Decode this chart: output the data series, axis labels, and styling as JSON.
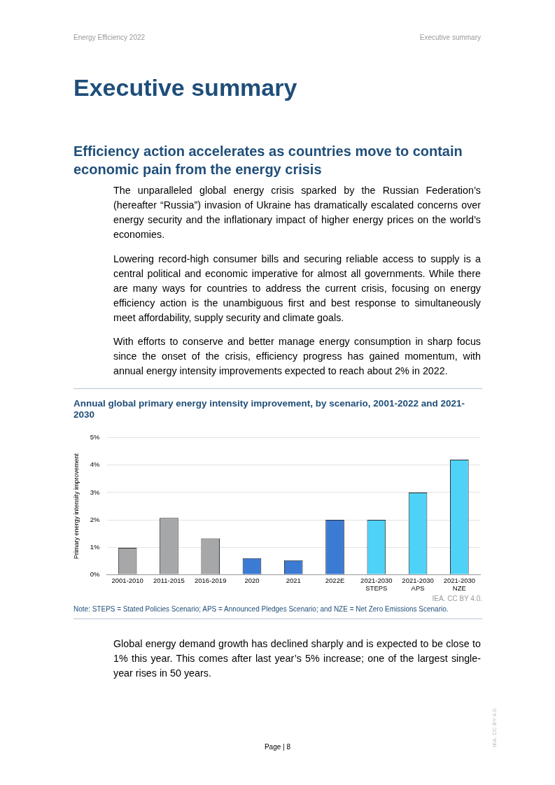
{
  "chart_data": {
    "type": "bar",
    "title": "Annual global primary energy intensity improvement, by scenario, 2001-2022 and 2021-2030",
    "ylabel": "Primary energy intensity improvement",
    "categories": [
      "2001-2010",
      "2011-2015",
      "2016-2019",
      "2020",
      "2021",
      "2022E",
      "2021-2030\nSTEPS",
      "2021-2030\nAPS",
      "2021-2030\nNZE"
    ],
    "values": [
      0.98,
      2.07,
      1.32,
      0.6,
      0.52,
      2.0,
      2.0,
      3.0,
      4.2
    ],
    "colors": [
      "#a6a7a9",
      "#a6a7a9",
      "#a6a7a9",
      "#3b7bd4",
      "#3b7bd4",
      "#3b7bd4",
      "#4fd2f7",
      "#4fd2f7",
      "#4fd2f7"
    ],
    "ylim": [
      0,
      5
    ],
    "yticks": [
      {
        "value": 0,
        "label": "0%"
      },
      {
        "value": 1,
        "label": "1%"
      },
      {
        "value": 2,
        "label": "2%"
      },
      {
        "value": 3,
        "label": "3%"
      },
      {
        "value": 4,
        "label": "4%"
      },
      {
        "value": 5,
        "label": "5%"
      }
    ],
    "grid": "y",
    "legend": false,
    "annotations": [
      "Energy Efficiency 2022",
      "Executive summary",
      "Executive summary",
      "Efficiency action accelerates as countries move to contain economic pain from the energy crisis",
      "The unparalleled global energy crisis sparked by the Russian Federation’s (hereafter “Russia”) invasion of Ukraine has dramatically escalated concerns over energy security and the inflationary impact of higher energy prices on the world’s economies.",
      "Lowering record-high consumer bills and securing reliable access to supply is a central political and economic imperative for almost all governments. While there are many ways for countries to address the current crisis, focusing on energy efficiency action is the unambiguous first and best response to simultaneously meet affordability, supply security and climate goals.",
      "With efforts to conserve and better manage energy consumption in sharp focus since the onset of the crisis, efficiency progress has gained momentum, with annual energy intensity improvements expected to reach about 2% in 2022.",
      "IEA. CC BY 4.0.",
      "Note: STEPS = Stated Policies Scenario; APS = Announced Pledges Scenario; and NZE = Net Zero Emissions Scenario.",
      "Global energy demand growth has declined sharply and is expected to be close to 1% this year. This comes after last year’s 5% increase; one of the largest single-year rises in 50 years.",
      "Page | 8",
      "IEA. CC BY 4.0."
    ]
  }
}
